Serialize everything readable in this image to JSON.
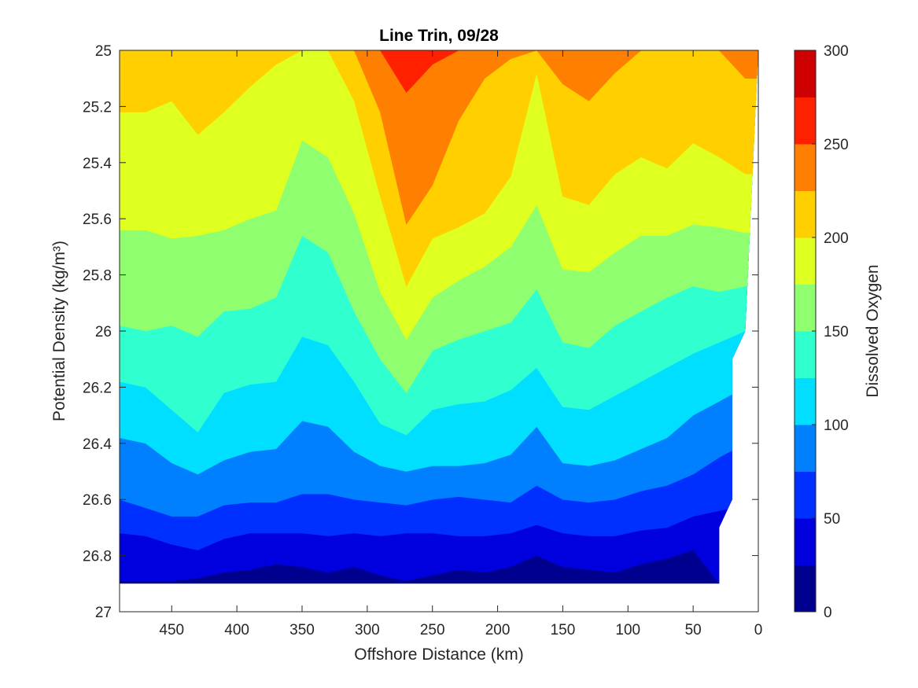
{
  "chart_data": {
    "type": "contourf",
    "title": "Line Trin, 09/28",
    "xlabel": "Offshore Distance (km)",
    "ylabel": "Potential Density (kg/m³)",
    "colorbar_label": "Dissolved Oxygen",
    "xlim": [
      490,
      0
    ],
    "ylim": [
      25,
      27
    ],
    "x_reversed": true,
    "y_reversed": true,
    "x_ticks": [
      450,
      400,
      350,
      300,
      250,
      200,
      150,
      100,
      50,
      0
    ],
    "y_ticks": [
      25,
      25.2,
      25.4,
      25.6,
      25.8,
      26,
      26.2,
      26.4,
      26.6,
      26.8,
      27
    ],
    "y_tick_labels": [
      "25",
      "25.2",
      "25.4",
      "25.6",
      "25.8",
      "26",
      "26.2",
      "26.4",
      "26.6",
      "26.8",
      "27"
    ],
    "colorbar_ticks": [
      0,
      50,
      100,
      150,
      200,
      250,
      300
    ],
    "levels": [
      0,
      25,
      50,
      75,
      100,
      125,
      150,
      175,
      200,
      225,
      250,
      275,
      300
    ],
    "level_colors": [
      "#00008f",
      "#0000df",
      "#0030ff",
      "#0080ff",
      "#00dfff",
      "#30ffcf",
      "#8fff70",
      "#dfff20",
      "#ffcf00",
      "#ff7f00",
      "#ff2000",
      "#cf0000"
    ],
    "data_extent": {
      "density_bottom": 26.9,
      "right_edge_distance": [
        {
          "density": 25,
          "distance": 0
        },
        {
          "density": 26,
          "distance": 10
        },
        {
          "density": 26.1,
          "distance": 20
        },
        {
          "density": 26.6,
          "distance": 20
        },
        {
          "density": 26.7,
          "distance": 30
        },
        {
          "density": 26.9,
          "distance": 30
        }
      ]
    },
    "x": [
      490,
      470,
      450,
      430,
      410,
      390,
      370,
      350,
      330,
      310,
      290,
      270,
      250,
      230,
      210,
      190,
      170,
      150,
      130,
      110,
      90,
      70,
      50,
      30,
      10
    ],
    "contour_depths": [
      {
        "level": 25,
        "density": [
          26.89,
          26.89,
          26.89,
          26.88,
          26.86,
          26.85,
          26.83,
          26.84,
          26.86,
          26.84,
          26.87,
          26.89,
          26.87,
          26.85,
          26.86,
          26.84,
          26.8,
          26.84,
          26.85,
          26.86,
          26.83,
          26.81,
          26.78,
          26.9,
          26.9
        ]
      },
      {
        "level": 50,
        "density": [
          26.72,
          26.73,
          26.76,
          26.78,
          26.74,
          26.72,
          26.72,
          26.72,
          26.73,
          26.72,
          26.73,
          26.72,
          26.72,
          26.73,
          26.73,
          26.72,
          26.69,
          26.72,
          26.73,
          26.73,
          26.71,
          26.7,
          26.66,
          26.64,
          26.62
        ]
      },
      {
        "level": 75,
        "density": [
          26.6,
          26.63,
          26.66,
          26.66,
          26.62,
          26.61,
          26.61,
          26.58,
          26.58,
          26.6,
          26.61,
          26.62,
          26.6,
          26.59,
          26.6,
          26.61,
          26.55,
          26.6,
          26.61,
          26.6,
          26.57,
          26.55,
          26.51,
          26.45,
          26.4
        ]
      },
      {
        "level": 100,
        "density": [
          26.38,
          26.4,
          26.47,
          26.51,
          26.46,
          26.43,
          26.42,
          26.32,
          26.34,
          26.43,
          26.48,
          26.5,
          26.48,
          26.48,
          26.47,
          26.44,
          26.34,
          26.47,
          26.48,
          26.46,
          26.42,
          26.38,
          26.3,
          26.25,
          26.2
        ]
      },
      {
        "level": 125,
        "density": [
          26.18,
          26.2,
          26.28,
          26.36,
          26.22,
          26.19,
          26.18,
          26.02,
          26.05,
          26.18,
          26.33,
          26.37,
          26.28,
          26.26,
          26.25,
          26.21,
          26.13,
          26.27,
          26.28,
          26.23,
          26.18,
          26.13,
          26.08,
          26.04,
          26.0
        ]
      },
      {
        "level": 150,
        "density": [
          25.98,
          26.0,
          25.98,
          26.02,
          25.93,
          25.92,
          25.88,
          25.66,
          25.72,
          25.93,
          26.1,
          26.22,
          26.07,
          26.03,
          26.0,
          25.97,
          25.85,
          26.04,
          26.06,
          25.98,
          25.93,
          25.88,
          25.84,
          25.86,
          25.84
        ]
      },
      {
        "level": 175,
        "density": [
          25.64,
          25.64,
          25.67,
          25.66,
          25.64,
          25.6,
          25.57,
          25.32,
          25.38,
          25.58,
          25.86,
          26.03,
          25.88,
          25.82,
          25.77,
          25.7,
          25.55,
          25.78,
          25.79,
          25.72,
          25.66,
          25.66,
          25.62,
          25.63,
          25.65
        ]
      },
      {
        "level": 200,
        "density": [
          25.22,
          25.22,
          25.18,
          25.3,
          25.22,
          25.13,
          25.05,
          25.0,
          25.0,
          25.18,
          25.52,
          25.84,
          25.67,
          25.63,
          25.58,
          25.45,
          25.08,
          25.52,
          25.55,
          25.44,
          25.38,
          25.42,
          25.33,
          25.38,
          25.44
        ]
      },
      {
        "level": 225,
        "density": [
          25.0,
          25.0,
          25.0,
          25.0,
          25.0,
          25.0,
          25.0,
          25.0,
          25.0,
          25.0,
          25.22,
          25.62,
          25.48,
          25.25,
          25.1,
          25.03,
          25.0,
          25.12,
          25.18,
          25.08,
          25.0,
          25.0,
          25.0,
          25.0,
          25.1
        ]
      },
      {
        "level": 250,
        "density": [
          25.0,
          25.0,
          25.0,
          25.0,
          25.0,
          25.0,
          25.0,
          25.0,
          25.0,
          25.0,
          25.0,
          25.15,
          25.05,
          25.0,
          25.0,
          25.0,
          25.0,
          25.0,
          25.0,
          25.0,
          25.0,
          25.0,
          25.0,
          25.0,
          25.0
        ]
      },
      {
        "level": 275,
        "density": [
          25.0,
          25.0,
          25.0,
          25.0,
          25.0,
          25.0,
          25.0,
          25.0,
          25.0,
          25.0,
          25.0,
          25.0,
          25.0,
          25.0,
          25.0,
          25.0,
          25.0,
          25.0,
          25.0,
          25.0,
          25.0,
          25.0,
          25.0,
          25.0,
          25.0
        ]
      }
    ]
  }
}
